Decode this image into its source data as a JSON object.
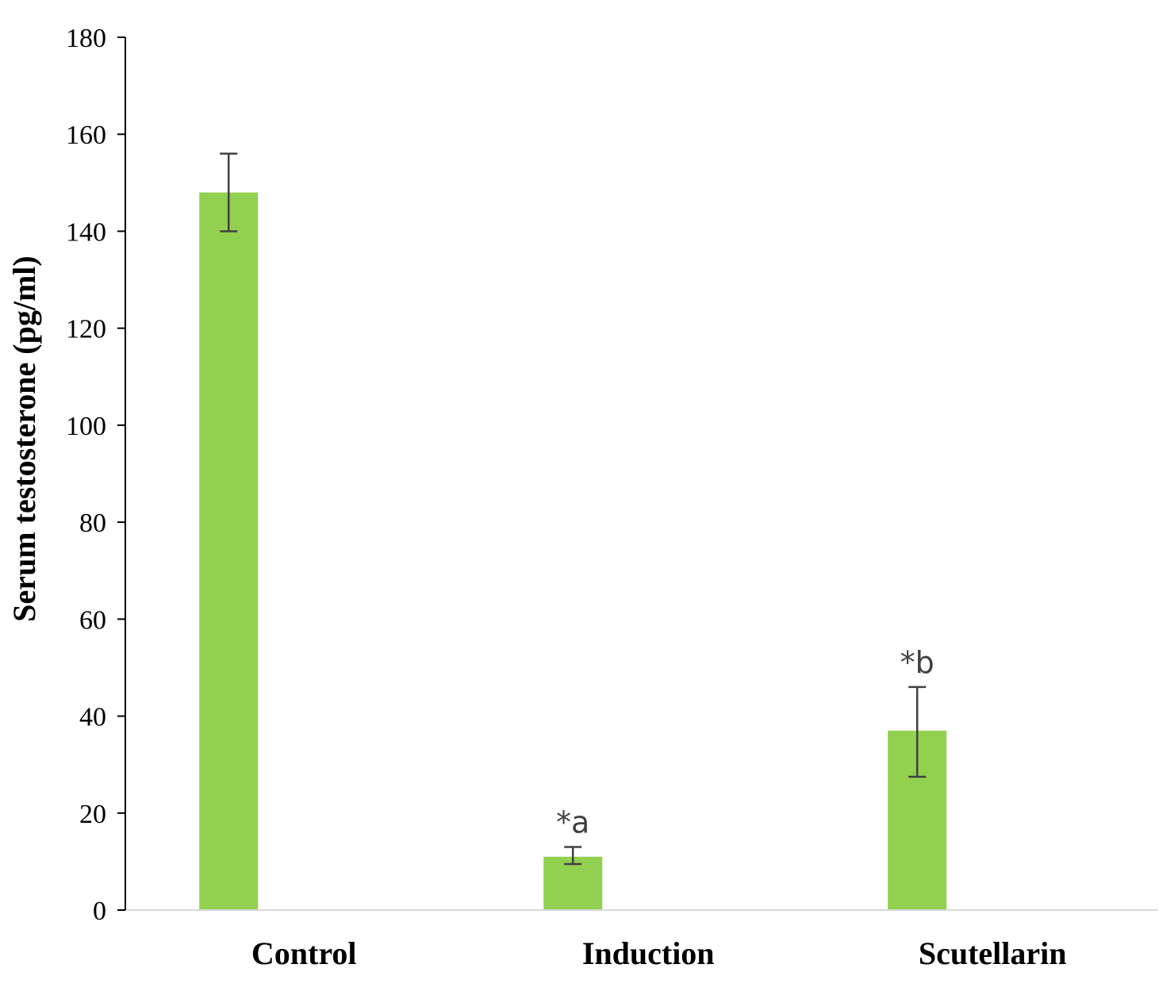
{
  "chart_data": {
    "type": "bar",
    "title": "",
    "xlabel": "",
    "ylabel": "Serum testosterone (pg/ml)",
    "categories": [
      "Control",
      "Induction",
      "Scutellarin"
    ],
    "values": [
      148,
      11,
      37
    ],
    "error": [
      {
        "low": 140,
        "high": 156
      },
      {
        "low": 9.5,
        "high": 13
      },
      {
        "low": 27.5,
        "high": 46
      }
    ],
    "annotations": [
      "",
      "*a",
      "*b"
    ],
    "ylim": [
      0,
      180
    ],
    "yticks": [
      "0",
      "20",
      "40",
      "60",
      "80",
      "100",
      "120",
      "140",
      "160",
      "180"
    ],
    "grid": false,
    "legend": "none",
    "colors": {
      "bar": "#92d050",
      "axis": "#000000",
      "baseline": "#d9d9d9",
      "error_bar": "#404040",
      "annotation": "#404040"
    }
  }
}
